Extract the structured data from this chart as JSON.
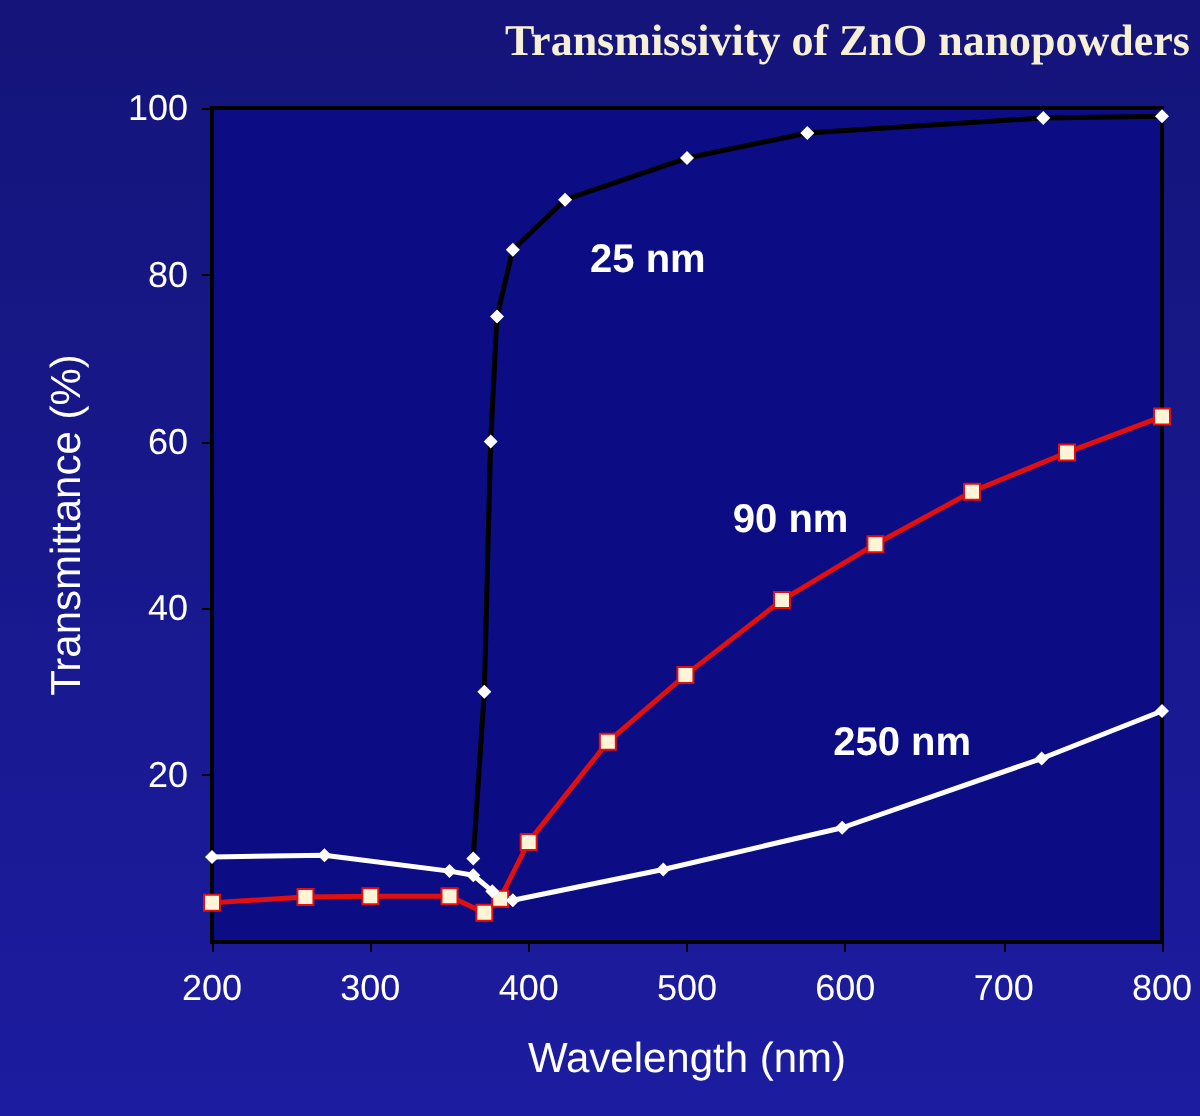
{
  "chart_data": {
    "type": "line",
    "title": "Transmissivity of ZnO nanopowders",
    "xlabel": "Wavelength (nm)",
    "ylabel": "Transmittance (%)",
    "xlim": [
      200,
      800
    ],
    "xticks": [
      200,
      300,
      400,
      500,
      600,
      700,
      800
    ],
    "ylim": [
      0,
      100
    ],
    "yticks": [
      20,
      40,
      60,
      80,
      100
    ],
    "grid": false,
    "legend": false,
    "line_style": "solid",
    "series": [
      {
        "name": "25 nm",
        "color": "#000000",
        "marker": "diamond",
        "x": [
          365,
          372,
          376,
          380,
          390,
          423,
          500,
          576,
          725,
          800
        ],
        "values": [
          10,
          30,
          60,
          75,
          83,
          89,
          94,
          97,
          98.8,
          99
        ]
      },
      {
        "name": "90 nm",
        "color": "#e01010",
        "marker": "square",
        "x": [
          200,
          259,
          300,
          350,
          372,
          382,
          400,
          450,
          499,
          560,
          619,
          680,
          740,
          800
        ],
        "values": [
          4.7,
          5.4,
          5.5,
          5.5,
          3.5,
          5.2,
          12,
          24,
          32,
          41,
          47.7,
          54,
          58.7,
          63
        ]
      },
      {
        "name": "250 nm",
        "color": "#ffffff",
        "marker": "diamond",
        "x": [
          200,
          271,
          350,
          365,
          377,
          390,
          485,
          598,
          724,
          800
        ],
        "values": [
          10.2,
          10.4,
          8.5,
          8,
          6.1,
          5,
          8.7,
          13.7,
          22,
          27.7
        ]
      }
    ]
  }
}
